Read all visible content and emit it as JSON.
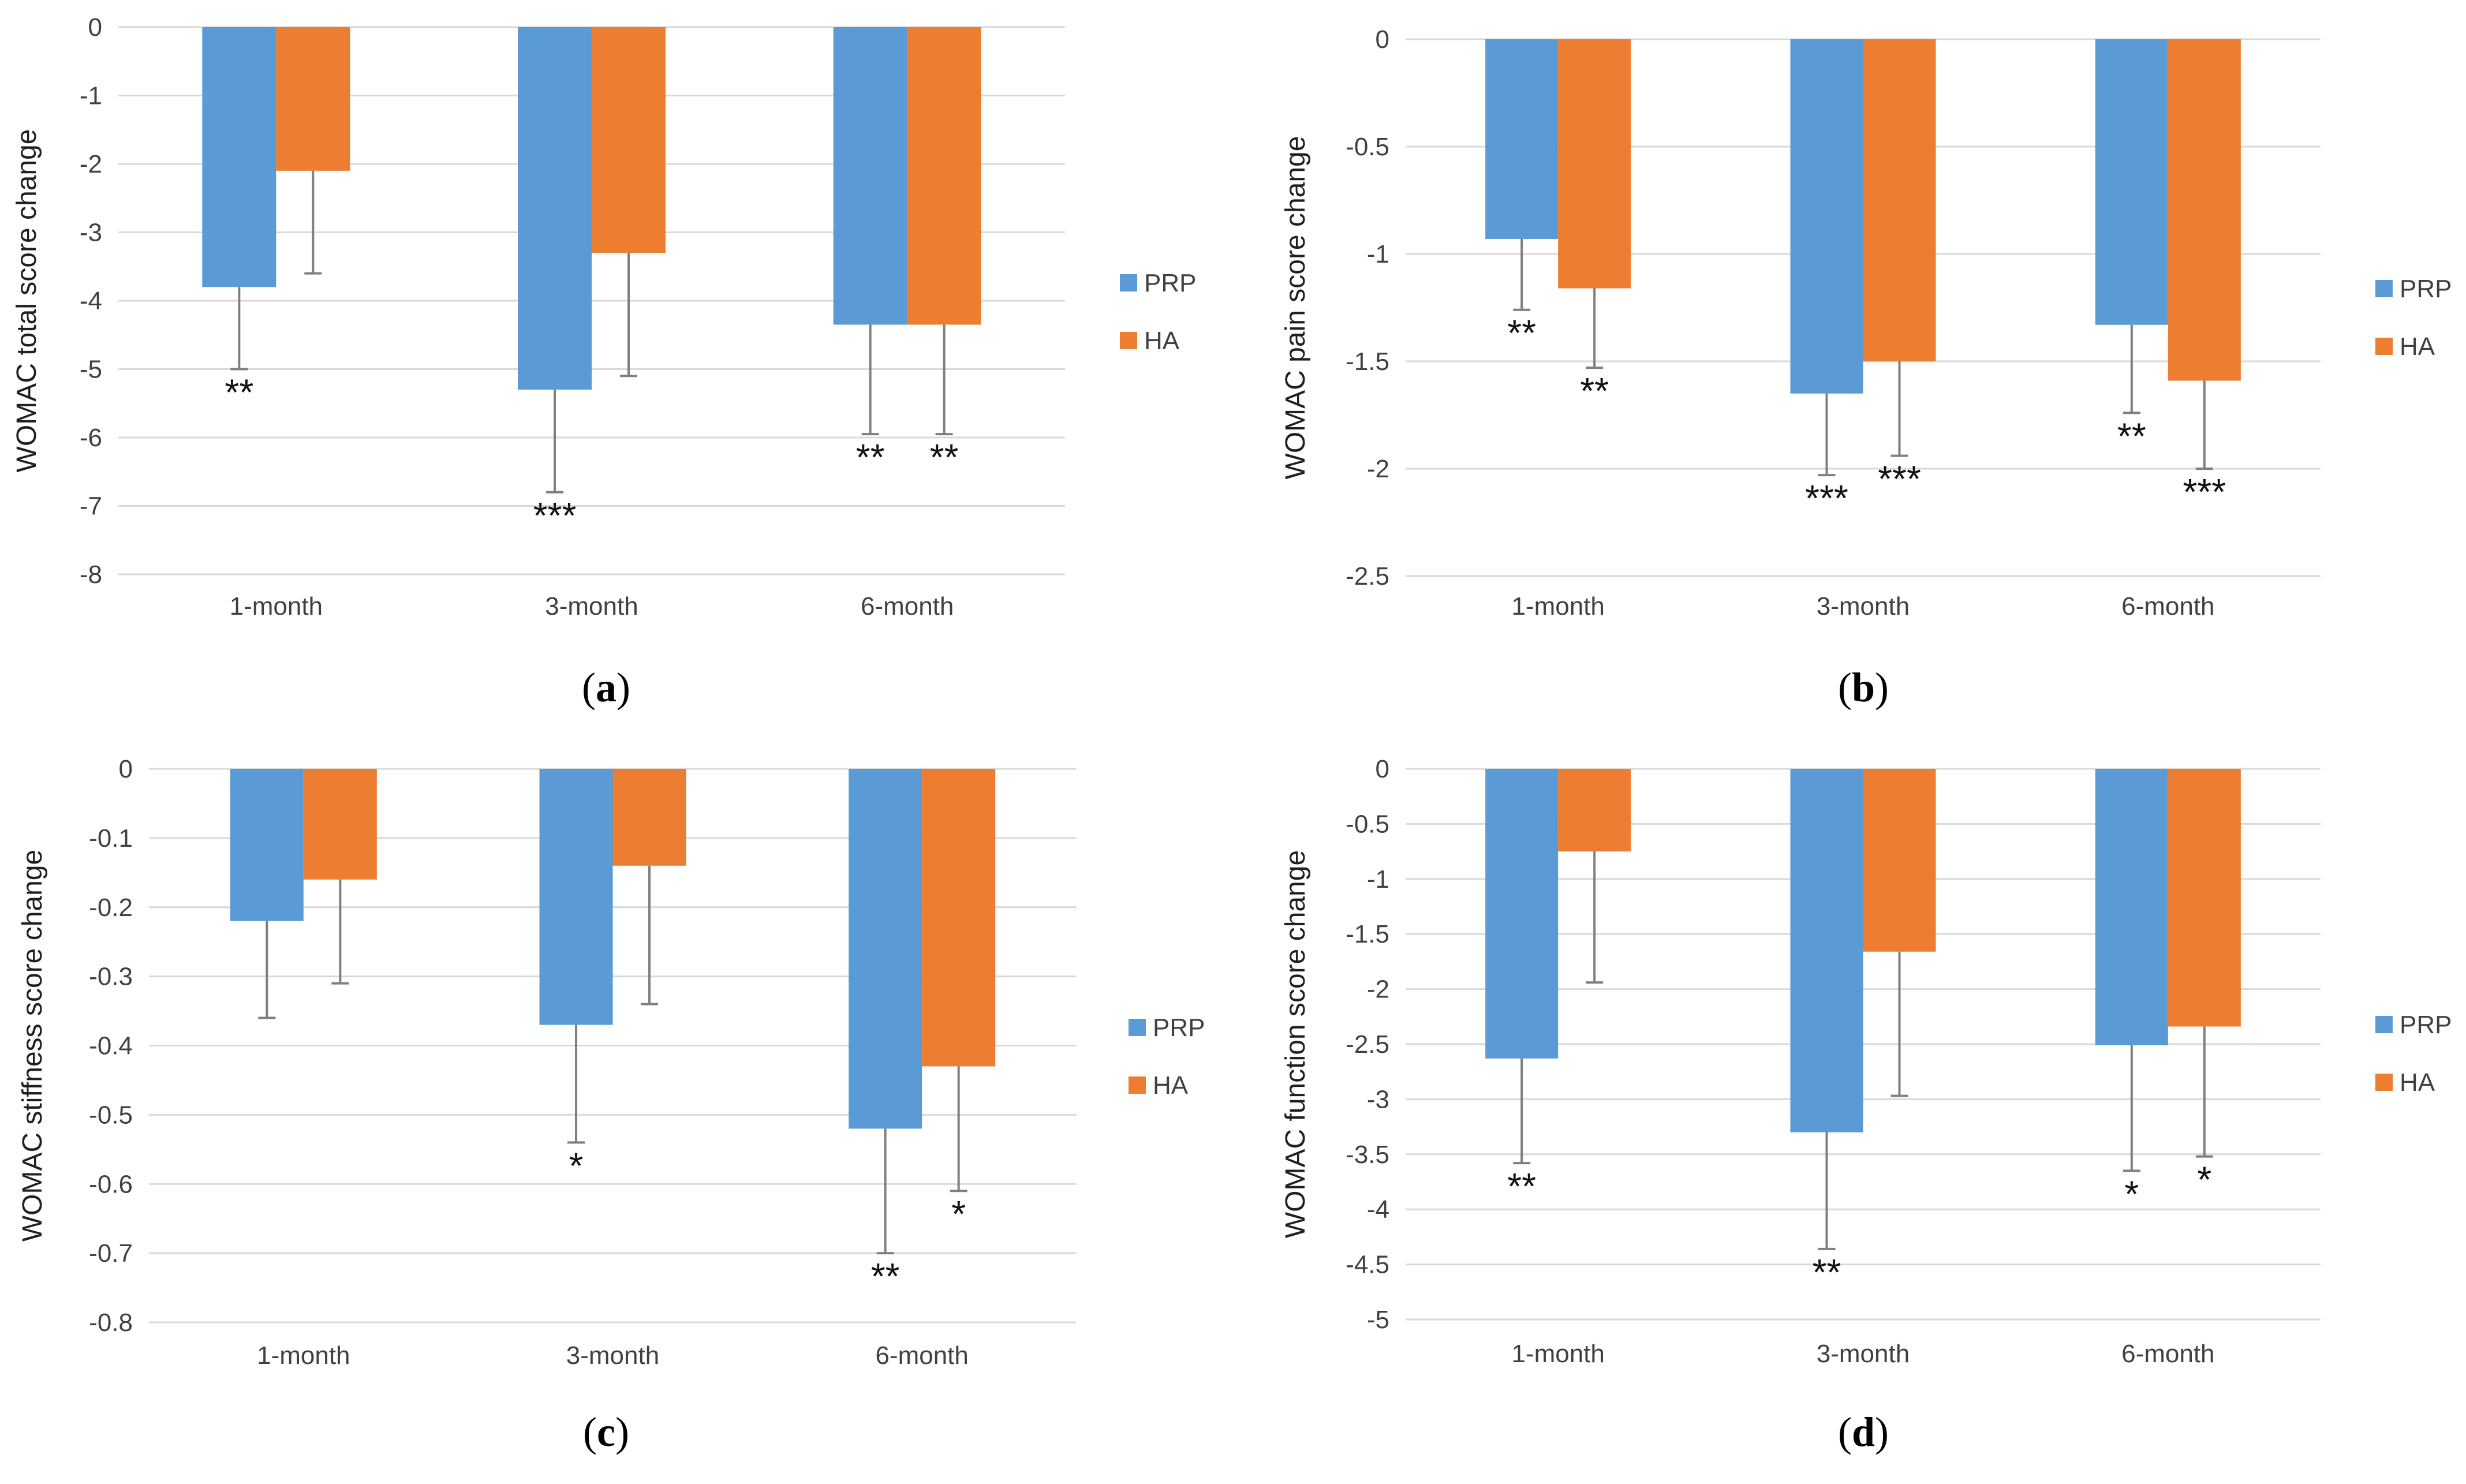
{
  "colors": {
    "PRP": "#5b9bd5",
    "HA": "#ed7d31"
  },
  "chart_data": [
    {
      "type": "bar",
      "panel_label": "a",
      "ylabel": "WOMAC total score change",
      "categories": [
        "1-month",
        "3-month",
        "6-month"
      ],
      "ylim": [
        -8,
        0
      ],
      "yticks": [
        0,
        -1,
        -2,
        -3,
        -4,
        -5,
        -6,
        -7,
        -8
      ],
      "series": [
        {
          "name": "PRP",
          "values": [
            -3.8,
            -5.3,
            -4.35
          ],
          "error_to": [
            -5.0,
            -6.8,
            -5.95
          ],
          "significance": [
            "**",
            "***",
            "**"
          ]
        },
        {
          "name": "HA",
          "values": [
            -2.1,
            -3.3,
            -4.35
          ],
          "error_to": [
            -3.6,
            -5.1,
            -5.95
          ],
          "significance": [
            "",
            "",
            "**"
          ]
        }
      ]
    },
    {
      "type": "bar",
      "panel_label": "b",
      "ylabel": "WOMAC pain score change",
      "categories": [
        "1-month",
        "3-month",
        "6-month"
      ],
      "ylim": [
        -2.5,
        0
      ],
      "yticks": [
        0,
        -0.5,
        -1,
        -1.5,
        -2,
        -2.5
      ],
      "series": [
        {
          "name": "PRP",
          "values": [
            -0.93,
            -1.65,
            -1.33
          ],
          "error_to": [
            -1.26,
            -2.03,
            -1.74
          ],
          "significance": [
            "**",
            "***",
            "**"
          ]
        },
        {
          "name": "HA",
          "values": [
            -1.16,
            -1.5,
            -1.59
          ],
          "error_to": [
            -1.53,
            -1.94,
            -2.0
          ],
          "significance": [
            "**",
            "***",
            "***"
          ]
        }
      ]
    },
    {
      "type": "bar",
      "panel_label": "c",
      "ylabel": "WOMAC stiffness score change",
      "categories": [
        "1-month",
        "3-month",
        "6-month"
      ],
      "ylim": [
        -0.8,
        0
      ],
      "yticks": [
        0,
        -0.1,
        -0.2,
        -0.3,
        -0.4,
        -0.5,
        -0.6,
        -0.7,
        -0.8
      ],
      "series": [
        {
          "name": "PRP",
          "values": [
            -0.22,
            -0.37,
            -0.52
          ],
          "error_to": [
            -0.36,
            -0.54,
            -0.7
          ],
          "significance": [
            "",
            "*",
            "**"
          ]
        },
        {
          "name": "HA",
          "values": [
            -0.16,
            -0.14,
            -0.43
          ],
          "error_to": [
            -0.31,
            -0.34,
            -0.61
          ],
          "significance": [
            "",
            "",
            "*"
          ]
        }
      ]
    },
    {
      "type": "bar",
      "panel_label": "d",
      "ylabel": "WOMAC function score change",
      "categories": [
        "1-month",
        "3-month",
        "6-month"
      ],
      "ylim": [
        -5,
        0
      ],
      "yticks": [
        0,
        -0.5,
        -1,
        -1.5,
        -2,
        -2.5,
        -3,
        -3.5,
        -4,
        -4.5,
        -5
      ],
      "series": [
        {
          "name": "PRP",
          "values": [
            -2.63,
            -3.3,
            -2.51
          ],
          "error_to": [
            -3.58,
            -4.36,
            -3.65
          ],
          "significance": [
            "**",
            "**",
            "*"
          ]
        },
        {
          "name": "HA",
          "values": [
            -0.75,
            -1.66,
            -2.34
          ],
          "error_to": [
            -1.94,
            -2.97,
            -3.52
          ],
          "significance": [
            "",
            "",
            "*"
          ]
        }
      ]
    }
  ]
}
